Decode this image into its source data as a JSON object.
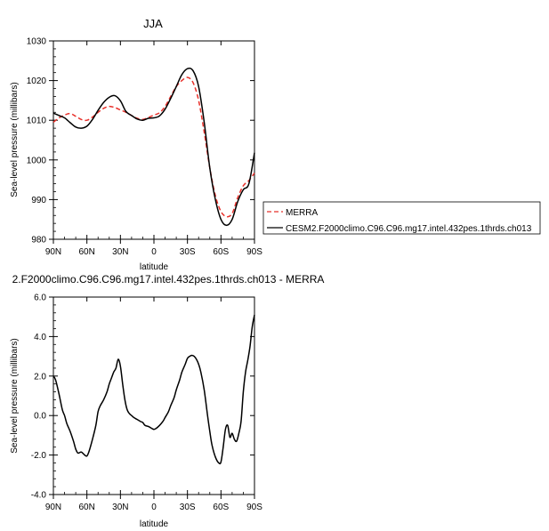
{
  "chart_data": [
    {
      "type": "line",
      "title": "JJA",
      "xlabel": "latitude",
      "ylabel": "Sea-level pressure (millibars)",
      "xlim": [
        90,
        -90
      ],
      "ylim": [
        980,
        1030
      ],
      "xticks": [
        90,
        60,
        30,
        0,
        -30,
        -60,
        -90
      ],
      "xtick_labels": [
        "90N",
        "60N",
        "30N",
        "0",
        "30S",
        "60S",
        "90S"
      ],
      "yticks": [
        980,
        990,
        1000,
        1010,
        1020,
        1030
      ],
      "ytick_labels": [
        "980",
        "990",
        "1000",
        "1010",
        "1020",
        "1030"
      ],
      "legend": "outside-right",
      "series": [
        {
          "name": "MERRA",
          "color": "#e8302a",
          "dash": "dashed",
          "x": [
            90,
            85,
            80,
            75,
            70,
            65,
            60,
            55,
            50,
            45,
            40,
            35,
            30,
            25,
            20,
            15,
            10,
            5,
            0,
            -5,
            -10,
            -15,
            -20,
            -25,
            -30,
            -35,
            -40,
            -45,
            -50,
            -55,
            -60,
            -65,
            -70,
            -75,
            -80,
            -85,
            -90
          ],
          "values": [
            1009.5,
            1010.6,
            1011.3,
            1011.7,
            1011.0,
            1010.2,
            1010.0,
            1010.8,
            1012.0,
            1013.0,
            1013.5,
            1013.2,
            1012.6,
            1012.0,
            1011.2,
            1010.5,
            1010.2,
            1010.7,
            1011.3,
            1011.9,
            1013.5,
            1016.0,
            1018.5,
            1020.0,
            1020.8,
            1019.5,
            1015.0,
            1007.0,
            998.0,
            991.0,
            987.0,
            985.7,
            986.5,
            990.5,
            993.5,
            994.8,
            996.7
          ]
        },
        {
          "name": "CESM2.F2000climo.C96.C96.mg17.intel.432pes.1thrds.ch013",
          "color": "#000000",
          "dash": "solid",
          "x": [
            90,
            85,
            80,
            75,
            70,
            65,
            60,
            55,
            50,
            45,
            40,
            35,
            30,
            25,
            20,
            15,
            10,
            5,
            0,
            -5,
            -10,
            -15,
            -20,
            -25,
            -30,
            -35,
            -40,
            -45,
            -50,
            -55,
            -60,
            -65,
            -70,
            -75,
            -80,
            -85,
            -90
          ],
          "values": [
            1011.8,
            1011.2,
            1010.6,
            1009.4,
            1008.3,
            1008.0,
            1008.5,
            1010.2,
            1012.5,
            1014.5,
            1015.8,
            1016.2,
            1014.9,
            1012.2,
            1011.2,
            1010.3,
            1010.0,
            1010.5,
            1010.6,
            1011.1,
            1012.8,
            1015.5,
            1018.5,
            1021.5,
            1023.0,
            1022.5,
            1018.5,
            1009.5,
            998.0,
            990.0,
            985.0,
            983.5,
            985.0,
            989.5,
            992.5,
            994.0,
            1001.8
          ]
        }
      ]
    },
    {
      "type": "line",
      "title": "2.F2000climo.C96.C96.mg17.intel.432pes.1thrds.ch013 - MERRA",
      "xlabel": "latitude",
      "ylabel": "Sea-level pressure (millibars)",
      "xlim": [
        90,
        -90
      ],
      "ylim": [
        -4.0,
        6.0
      ],
      "xticks": [
        90,
        60,
        30,
        0,
        -30,
        -60,
        -90
      ],
      "xtick_labels": [
        "90N",
        "60N",
        "30N",
        "0",
        "30S",
        "60S",
        "90S"
      ],
      "yticks": [
        -4.0,
        -2.0,
        0.0,
        2.0,
        4.0,
        6.0
      ],
      "ytick_labels": [
        "-4.0",
        "-2.0",
        "0.0",
        "2.0",
        "4.0",
        "6.0"
      ],
      "series": [
        {
          "color": "#000000",
          "dash": "solid",
          "x": [
            90,
            88,
            85,
            82,
            80,
            78,
            75,
            72,
            70,
            68,
            65,
            62,
            60,
            58,
            55,
            52,
            50,
            48,
            45,
            42,
            40,
            38,
            36,
            34,
            32,
            30,
            28,
            26,
            24,
            22,
            20,
            18,
            15,
            12,
            10,
            8,
            5,
            2,
            0,
            -2,
            -5,
            -8,
            -10,
            -13,
            -15,
            -18,
            -20,
            -23,
            -25,
            -28,
            -30,
            -32,
            -34,
            -36,
            -38,
            -40,
            -42,
            -45,
            -48,
            -50,
            -52,
            -55,
            -58,
            -60,
            -62,
            -64,
            -66,
            -68,
            -70,
            -72,
            -74,
            -76,
            -78,
            -80,
            -82,
            -84,
            -86,
            -88,
            -90
          ],
          "values": [
            2.0,
            1.8,
            1.1,
            0.3,
            0.0,
            -0.4,
            -0.8,
            -1.3,
            -1.7,
            -1.9,
            -1.85,
            -2.0,
            -2.05,
            -1.8,
            -1.2,
            -0.5,
            0.2,
            0.5,
            0.8,
            1.2,
            1.6,
            1.9,
            2.2,
            2.4,
            2.85,
            2.5,
            1.6,
            0.8,
            0.3,
            0.1,
            0.0,
            -0.1,
            -0.2,
            -0.3,
            -0.35,
            -0.5,
            -0.55,
            -0.65,
            -0.7,
            -0.65,
            -0.5,
            -0.3,
            -0.1,
            0.2,
            0.5,
            0.9,
            1.3,
            1.8,
            2.2,
            2.6,
            2.9,
            3.0,
            3.05,
            3.0,
            2.85,
            2.6,
            2.2,
            1.3,
            0.0,
            -0.8,
            -1.5,
            -2.1,
            -2.4,
            -2.35,
            -1.6,
            -0.7,
            -0.5,
            -1.1,
            -0.9,
            -1.2,
            -1.3,
            -0.9,
            -0.3,
            1.2,
            2.2,
            2.8,
            3.5,
            4.5,
            5.1
          ]
        }
      ]
    }
  ]
}
